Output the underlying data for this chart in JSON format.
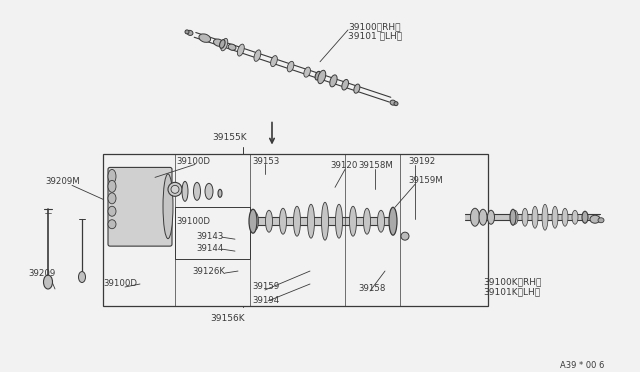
{
  "bg_color": "#f2f2f2",
  "diagram_ref": "A39 * 00 6",
  "parts": {
    "top_label1": "39100〈RH〉",
    "top_label2": "39101 〈LH〉",
    "label_39155K": "39155K",
    "label_39156K": "39156K",
    "label_39100D_a": "39100D",
    "label_39100D_b": "39100D",
    "label_39100D_c": "39100D",
    "label_39153": "39153",
    "label_39120": "39120",
    "label_39158M": "39158M",
    "label_39192": "39192",
    "label_39159M": "39159M",
    "label_39209M": "39209M",
    "label_39143": "39143",
    "label_39144": "39144",
    "label_39126K": "39126K",
    "label_39209": "39209",
    "label_39159": "39159",
    "label_39194": "39194",
    "label_39158": "39158",
    "label_rh_bot": "39100K〈RH〉",
    "label_lh_bot": "39101K〈LH〉"
  },
  "lc": "#3a3a3a"
}
